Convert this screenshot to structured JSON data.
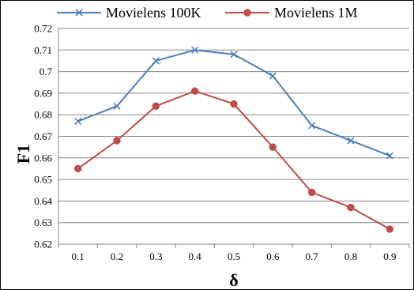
{
  "chart_data": {
    "type": "line",
    "categories": [
      "0.1",
      "0.2",
      "0.3",
      "0.4",
      "0.5",
      "0.6",
      "0.7",
      "0.8",
      "0.9"
    ],
    "series": [
      {
        "name": "Movielens 100K",
        "color": "#4A7EBB",
        "marker": "x",
        "values": [
          0.677,
          0.684,
          0.705,
          0.71,
          0.708,
          0.698,
          0.675,
          0.668,
          0.661
        ]
      },
      {
        "name": "Movielens 1M",
        "color": "#BE4B48",
        "marker": "circle",
        "values": [
          0.655,
          0.668,
          0.684,
          0.691,
          0.685,
          0.665,
          0.644,
          0.637,
          0.627
        ]
      }
    ],
    "ytick_labels": [
      "0.62",
      "0.63",
      "0.64",
      "0.65",
      "0.66",
      "0.67",
      "0.68",
      "0.69",
      "0.7",
      "0.71",
      "0.72"
    ],
    "ylim": [
      0.62,
      0.72
    ],
    "xlabel": "δ",
    "ylabel": "F1",
    "grid": "horizontal",
    "legend": "top"
  }
}
